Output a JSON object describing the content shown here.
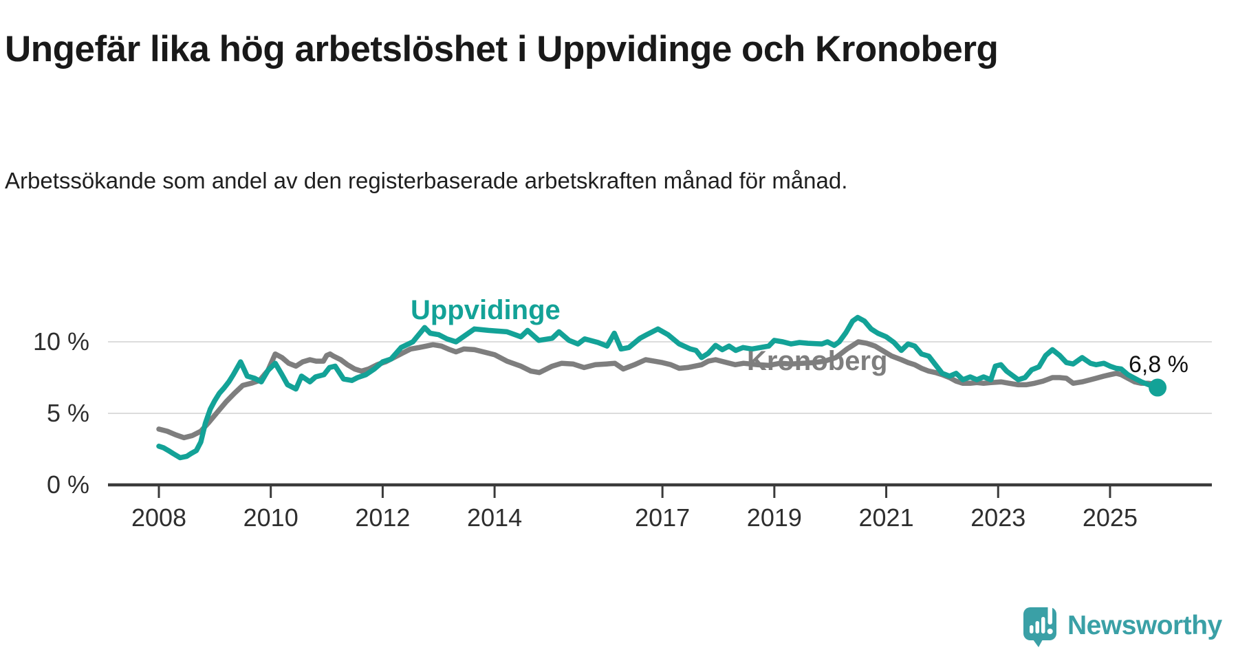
{
  "header": {
    "title": "Ungefär lika hög arbetslöshet i Uppvidinge och Kronoberg",
    "subtitle": "Arbetssökande som andel av den registerbaserade arbetskraften månad för månad."
  },
  "colors": {
    "teal_line": "#13a297",
    "gray_line": "#7e7e7e",
    "axis": "#3a3a3a",
    "grid": "#dcdcdc",
    "text_dark": "#191919",
    "logo_teal": "#3aa0a6"
  },
  "branding": {
    "logo_text": "Newsworthy"
  },
  "chart_data": {
    "type": "line",
    "title": "Ungefär lika hög arbetslöshet i Uppvidinge och Kronoberg",
    "subtitle": "Arbetssökande som andel av den registerbaserade arbetskraften månad för månad.",
    "unit": "%",
    "grid": true,
    "legend_position": "inline-labels",
    "xlim": [
      2007.1,
      2026.8
    ],
    "ylim": [
      0,
      12.5
    ],
    "y_ticks": [
      {
        "value": 0,
        "label": "0 %"
      },
      {
        "value": 5,
        "label": "5 %"
      },
      {
        "value": 10,
        "label": "10 %"
      }
    ],
    "x_ticks": [
      {
        "year": 2008,
        "label": "2008"
      },
      {
        "year": 2010,
        "label": "2010"
      },
      {
        "year": 2012,
        "label": "2012"
      },
      {
        "year": 2014,
        "label": "2014"
      },
      {
        "year": 2017,
        "label": "2017"
      },
      {
        "year": 2019,
        "label": "2019"
      },
      {
        "year": 2021,
        "label": "2021"
      },
      {
        "year": 2023,
        "label": "2023"
      },
      {
        "year": 2025,
        "label": "2025"
      }
    ],
    "series": [
      {
        "name": "Uppvidinge",
        "color": "#13a297",
        "end_label": "6,8 %",
        "end_marker": true,
        "points": [
          [
            2008.0,
            2.7
          ],
          [
            2008.08,
            2.6
          ],
          [
            2008.17,
            2.4
          ],
          [
            2008.25,
            2.2
          ],
          [
            2008.38,
            1.9
          ],
          [
            2008.5,
            2.0
          ],
          [
            2008.58,
            2.2
          ],
          [
            2008.67,
            2.4
          ],
          [
            2008.75,
            3.0
          ],
          [
            2008.83,
            4.3
          ],
          [
            2008.92,
            5.3
          ],
          [
            2009.0,
            5.9
          ],
          [
            2009.08,
            6.4
          ],
          [
            2009.17,
            6.8
          ],
          [
            2009.25,
            7.2
          ],
          [
            2009.33,
            7.7
          ],
          [
            2009.46,
            8.6
          ],
          [
            2009.58,
            7.6
          ],
          [
            2009.71,
            7.45
          ],
          [
            2009.83,
            7.2
          ],
          [
            2009.95,
            8.0
          ],
          [
            2010.08,
            8.5
          ],
          [
            2010.2,
            7.7
          ],
          [
            2010.3,
            7.0
          ],
          [
            2010.45,
            6.7
          ],
          [
            2010.55,
            7.6
          ],
          [
            2010.7,
            7.2
          ],
          [
            2010.8,
            7.55
          ],
          [
            2010.95,
            7.7
          ],
          [
            2011.05,
            8.2
          ],
          [
            2011.15,
            8.3
          ],
          [
            2011.3,
            7.4
          ],
          [
            2011.45,
            7.3
          ],
          [
            2011.55,
            7.5
          ],
          [
            2011.7,
            7.7
          ],
          [
            2011.85,
            8.1
          ],
          [
            2012.0,
            8.6
          ],
          [
            2012.15,
            8.8
          ],
          [
            2012.33,
            9.6
          ],
          [
            2012.54,
            10.0
          ],
          [
            2012.75,
            11.0
          ],
          [
            2012.85,
            10.6
          ],
          [
            2013.0,
            10.5
          ],
          [
            2013.15,
            10.2
          ],
          [
            2013.31,
            10.0
          ],
          [
            2013.64,
            10.9
          ],
          [
            2013.89,
            10.8
          ],
          [
            2014.22,
            10.7
          ],
          [
            2014.47,
            10.35
          ],
          [
            2014.59,
            10.8
          ],
          [
            2014.79,
            10.1
          ],
          [
            2015.03,
            10.25
          ],
          [
            2015.15,
            10.7
          ],
          [
            2015.33,
            10.1
          ],
          [
            2015.49,
            9.85
          ],
          [
            2015.61,
            10.2
          ],
          [
            2015.85,
            9.95
          ],
          [
            2016.01,
            9.7
          ],
          [
            2016.14,
            10.6
          ],
          [
            2016.26,
            9.5
          ],
          [
            2016.4,
            9.6
          ],
          [
            2016.6,
            10.25
          ],
          [
            2016.72,
            10.5
          ],
          [
            2016.92,
            10.9
          ],
          [
            2017.1,
            10.5
          ],
          [
            2017.3,
            9.85
          ],
          [
            2017.5,
            9.5
          ],
          [
            2017.6,
            9.4
          ],
          [
            2017.7,
            8.9
          ],
          [
            2017.82,
            9.2
          ],
          [
            2017.95,
            9.75
          ],
          [
            2018.07,
            9.45
          ],
          [
            2018.19,
            9.7
          ],
          [
            2018.31,
            9.4
          ],
          [
            2018.44,
            9.6
          ],
          [
            2018.6,
            9.5
          ],
          [
            2018.75,
            9.6
          ],
          [
            2018.9,
            9.7
          ],
          [
            2019.0,
            10.1
          ],
          [
            2019.15,
            10.0
          ],
          [
            2019.3,
            9.85
          ],
          [
            2019.45,
            9.95
          ],
          [
            2019.6,
            9.9
          ],
          [
            2019.85,
            9.85
          ],
          [
            2019.95,
            10.0
          ],
          [
            2020.07,
            9.75
          ],
          [
            2020.16,
            10.0
          ],
          [
            2020.28,
            10.65
          ],
          [
            2020.4,
            11.45
          ],
          [
            2020.49,
            11.7
          ],
          [
            2020.61,
            11.45
          ],
          [
            2020.73,
            10.9
          ],
          [
            2020.85,
            10.6
          ],
          [
            2021.0,
            10.35
          ],
          [
            2021.14,
            9.95
          ],
          [
            2021.27,
            9.4
          ],
          [
            2021.39,
            9.85
          ],
          [
            2021.51,
            9.7
          ],
          [
            2021.63,
            9.15
          ],
          [
            2021.76,
            9.0
          ],
          [
            2021.88,
            8.4
          ],
          [
            2022.0,
            7.8
          ],
          [
            2022.13,
            7.6
          ],
          [
            2022.25,
            7.8
          ],
          [
            2022.37,
            7.35
          ],
          [
            2022.5,
            7.55
          ],
          [
            2022.62,
            7.35
          ],
          [
            2022.74,
            7.55
          ],
          [
            2022.87,
            7.35
          ],
          [
            2022.95,
            8.3
          ],
          [
            2023.05,
            8.4
          ],
          [
            2023.15,
            7.95
          ],
          [
            2023.36,
            7.35
          ],
          [
            2023.48,
            7.5
          ],
          [
            2023.6,
            8.05
          ],
          [
            2023.73,
            8.25
          ],
          [
            2023.85,
            9.05
          ],
          [
            2023.97,
            9.45
          ],
          [
            2024.1,
            9.05
          ],
          [
            2024.22,
            8.55
          ],
          [
            2024.34,
            8.45
          ],
          [
            2024.5,
            8.9
          ],
          [
            2024.65,
            8.5
          ],
          [
            2024.75,
            8.4
          ],
          [
            2024.89,
            8.5
          ],
          [
            2025.0,
            8.3
          ],
          [
            2025.11,
            8.15
          ],
          [
            2025.2,
            8.1
          ],
          [
            2025.32,
            7.7
          ],
          [
            2025.44,
            7.45
          ],
          [
            2025.56,
            7.2
          ],
          [
            2025.69,
            7.0
          ],
          [
            2025.85,
            6.8
          ]
        ]
      },
      {
        "name": "Kronoberg",
        "color": "#7e7e7e",
        "end_label": null,
        "end_marker": false,
        "points": [
          [
            2008.0,
            3.9
          ],
          [
            2008.15,
            3.75
          ],
          [
            2008.3,
            3.5
          ],
          [
            2008.45,
            3.3
          ],
          [
            2008.6,
            3.45
          ],
          [
            2008.75,
            3.75
          ],
          [
            2008.9,
            4.4
          ],
          [
            2009.05,
            5.1
          ],
          [
            2009.2,
            5.8
          ],
          [
            2009.35,
            6.4
          ],
          [
            2009.5,
            6.95
          ],
          [
            2009.65,
            7.1
          ],
          [
            2009.8,
            7.3
          ],
          [
            2009.95,
            8.0
          ],
          [
            2010.08,
            9.15
          ],
          [
            2010.2,
            8.9
          ],
          [
            2010.32,
            8.5
          ],
          [
            2010.45,
            8.3
          ],
          [
            2010.57,
            8.6
          ],
          [
            2010.7,
            8.75
          ],
          [
            2010.81,
            8.65
          ],
          [
            2010.94,
            8.65
          ],
          [
            2011.0,
            9.05
          ],
          [
            2011.06,
            9.15
          ],
          [
            2011.12,
            9.0
          ],
          [
            2011.25,
            8.75
          ],
          [
            2011.37,
            8.4
          ],
          [
            2011.5,
            8.1
          ],
          [
            2011.62,
            7.95
          ],
          [
            2011.75,
            8.1
          ],
          [
            2011.9,
            8.4
          ],
          [
            2012.05,
            8.6
          ],
          [
            2012.2,
            8.9
          ],
          [
            2012.35,
            9.2
          ],
          [
            2012.5,
            9.5
          ],
          [
            2012.65,
            9.6
          ],
          [
            2012.9,
            9.8
          ],
          [
            2013.05,
            9.7
          ],
          [
            2013.2,
            9.45
          ],
          [
            2013.31,
            9.3
          ],
          [
            2013.45,
            9.5
          ],
          [
            2013.64,
            9.45
          ],
          [
            2013.8,
            9.3
          ],
          [
            2014.0,
            9.1
          ],
          [
            2014.22,
            8.65
          ],
          [
            2014.47,
            8.3
          ],
          [
            2014.65,
            7.95
          ],
          [
            2014.8,
            7.85
          ],
          [
            2015.03,
            8.3
          ],
          [
            2015.2,
            8.5
          ],
          [
            2015.4,
            8.45
          ],
          [
            2015.6,
            8.2
          ],
          [
            2015.8,
            8.4
          ],
          [
            2016.0,
            8.45
          ],
          [
            2016.15,
            8.5
          ],
          [
            2016.3,
            8.1
          ],
          [
            2016.5,
            8.4
          ],
          [
            2016.7,
            8.75
          ],
          [
            2016.85,
            8.65
          ],
          [
            2017.0,
            8.55
          ],
          [
            2017.15,
            8.4
          ],
          [
            2017.3,
            8.15
          ],
          [
            2017.45,
            8.2
          ],
          [
            2017.7,
            8.4
          ],
          [
            2017.82,
            8.65
          ],
          [
            2017.95,
            8.75
          ],
          [
            2018.1,
            8.6
          ],
          [
            2018.3,
            8.4
          ],
          [
            2018.45,
            8.5
          ],
          [
            2018.7,
            8.4
          ],
          [
            2018.9,
            8.35
          ],
          [
            2019.1,
            8.5
          ],
          [
            2019.3,
            8.45
          ],
          [
            2019.5,
            8.5
          ],
          [
            2019.7,
            8.55
          ],
          [
            2019.9,
            8.65
          ],
          [
            2020.1,
            8.9
          ],
          [
            2020.3,
            9.5
          ],
          [
            2020.5,
            10.0
          ],
          [
            2020.65,
            9.9
          ],
          [
            2020.8,
            9.7
          ],
          [
            2020.95,
            9.35
          ],
          [
            2021.1,
            9.0
          ],
          [
            2021.27,
            8.75
          ],
          [
            2021.39,
            8.55
          ],
          [
            2021.51,
            8.4
          ],
          [
            2021.63,
            8.15
          ],
          [
            2021.76,
            7.95
          ],
          [
            2021.88,
            7.85
          ],
          [
            2022.0,
            7.7
          ],
          [
            2022.13,
            7.5
          ],
          [
            2022.25,
            7.25
          ],
          [
            2022.37,
            7.1
          ],
          [
            2022.5,
            7.1
          ],
          [
            2022.62,
            7.15
          ],
          [
            2022.74,
            7.1
          ],
          [
            2022.87,
            7.15
          ],
          [
            2023.05,
            7.2
          ],
          [
            2023.2,
            7.1
          ],
          [
            2023.36,
            7.0
          ],
          [
            2023.5,
            7.0
          ],
          [
            2023.65,
            7.1
          ],
          [
            2023.8,
            7.25
          ],
          [
            2023.97,
            7.5
          ],
          [
            2024.1,
            7.5
          ],
          [
            2024.22,
            7.45
          ],
          [
            2024.34,
            7.1
          ],
          [
            2024.5,
            7.2
          ],
          [
            2024.65,
            7.35
          ],
          [
            2024.75,
            7.45
          ],
          [
            2024.89,
            7.6
          ],
          [
            2025.0,
            7.7
          ],
          [
            2025.11,
            7.8
          ],
          [
            2025.2,
            7.7
          ],
          [
            2025.32,
            7.45
          ],
          [
            2025.44,
            7.2
          ],
          [
            2025.56,
            7.1
          ],
          [
            2025.69,
            7.1
          ],
          [
            2025.8,
            7.05
          ]
        ]
      }
    ]
  }
}
